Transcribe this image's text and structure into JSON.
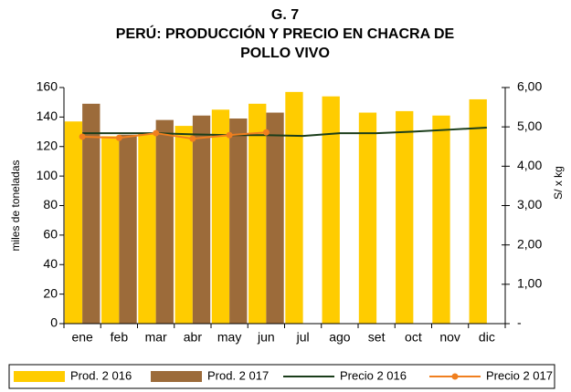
{
  "chart_data": {
    "type": "bar",
    "title": [
      "G. 7",
      "PERÚ: PRODUCCIÓN Y PRECIO EN CHACRA DE",
      "POLLO VIVO"
    ],
    "categories": [
      "ene",
      "feb",
      "mar",
      "abr",
      "may",
      "jun",
      "jul",
      "ago",
      "set",
      "oct",
      "nov",
      "dic"
    ],
    "series": [
      {
        "name": "Prod. 2 016",
        "type": "bar",
        "color": "#ffcc00",
        "values": [
          137,
          127,
          129,
          134,
          145,
          149,
          157,
          154,
          143,
          144,
          141,
          152
        ]
      },
      {
        "name": "Prod. 2 017",
        "type": "bar",
        "color": "#9c6b3a",
        "values": [
          149,
          128,
          138,
          141,
          139,
          143,
          null,
          null,
          null,
          null,
          null,
          null
        ]
      },
      {
        "name": "Precio 2 016",
        "type": "line",
        "axis": "y2",
        "color": "#1a3d1a",
        "values": [
          4.84,
          4.84,
          4.84,
          4.81,
          4.79,
          4.79,
          4.77,
          4.84,
          4.84,
          4.88,
          4.93,
          4.98
        ]
      },
      {
        "name": "Precio 2 017",
        "type": "line",
        "axis": "y2",
        "color": "#f07f1f",
        "marker": true,
        "values": [
          4.75,
          4.72,
          4.84,
          4.7,
          4.79,
          4.86,
          null,
          null,
          null,
          null,
          null,
          null
        ]
      }
    ],
    "ylabel": "miles de toneladas",
    "y2label": "S/ x kg",
    "ylim": [
      0,
      160
    ],
    "yticks": [
      0,
      20,
      40,
      60,
      80,
      100,
      120,
      140,
      160
    ],
    "y2lim": [
      0,
      6
    ],
    "y2ticks": [
      {
        "value": 0,
        "label": "-"
      },
      {
        "value": 1,
        "label": "1,00"
      },
      {
        "value": 2,
        "label": "2,00"
      },
      {
        "value": 3,
        "label": "3,00"
      },
      {
        "value": 4,
        "label": "4,00"
      },
      {
        "value": 5,
        "label": "5,00"
      },
      {
        "value": 6,
        "label": "6,00"
      }
    ],
    "legend": "bottom"
  }
}
